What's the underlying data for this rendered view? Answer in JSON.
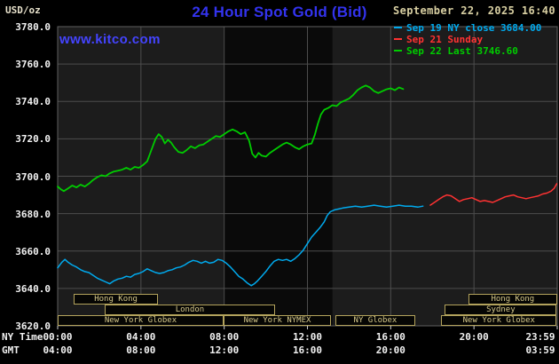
{
  "header": {
    "unit_label": "USD/oz",
    "title": "24 Hour Spot Gold (Bid)",
    "datetime": "September 22, 2025 16:40",
    "watermark": "www.kitco.com"
  },
  "colors": {
    "title_blue": "#3333ee",
    "watermark_blue": "#4444ff",
    "wheat": "#d8cfa2",
    "unit_text": "#e8e2cc",
    "axis_text": "#f2f2f2",
    "grid": "#4d4d4d",
    "frame": "#5f5f5f",
    "plot_bg": "#1c1c1c",
    "band": "#0a0a0a",
    "tick": "#cccccc",
    "session_border": "#b3a35c",
    "session_text": "#d6c98b"
  },
  "chart_data": {
    "type": "line",
    "title": "24 Hour Spot Gold (Bid)",
    "ylabel": "USD/oz",
    "timestamp": "September 22, 2025 16:40",
    "ylim": [
      3620,
      3780
    ],
    "x_hours": [
      0,
      24
    ],
    "grid": true,
    "legend_position": "top-right",
    "prev_ny_close": 3684.0,
    "last": 3746.6,
    "y_ticks": [
      {
        "value": 3780,
        "label": "3780.0"
      },
      {
        "value": 3760,
        "label": "3760.0"
      },
      {
        "value": 3740,
        "label": "3740.0"
      },
      {
        "value": 3720,
        "label": "3720.0"
      },
      {
        "value": 3700,
        "label": "3700.0"
      },
      {
        "value": 3680,
        "label": "3680.0"
      },
      {
        "value": 3660,
        "label": "3660.0"
      },
      {
        "value": 3640,
        "label": "3640.0"
      },
      {
        "value": 3620,
        "label": "3620.0"
      }
    ],
    "x_rows": [
      {
        "name": "NY Time",
        "ticks": [
          {
            "text": "00:00",
            "hour": 0
          },
          {
            "text": "04:00",
            "hour": 4
          },
          {
            "text": "08:00",
            "hour": 8
          },
          {
            "text": "12:00",
            "hour": 12
          },
          {
            "text": "16:00",
            "hour": 16
          },
          {
            "text": "20:00",
            "hour": 20
          },
          {
            "text": "23:59",
            "hour": 24
          }
        ]
      },
      {
        "name": "GMT",
        "ticks": [
          {
            "text": "04:00",
            "hour": 0
          },
          {
            "text": "08:00",
            "hour": 4
          },
          {
            "text": "12:00",
            "hour": 8
          },
          {
            "text": "16:00",
            "hour": 12
          },
          {
            "text": "20:00",
            "hour": 16
          },
          {
            "text": "03:59",
            "hour": 24
          }
        ]
      }
    ],
    "highlight_band_hours": [
      8,
      13.2
    ],
    "series": [
      {
        "id": "sep19",
        "name": "Sep 19 NY close 3684.00",
        "color": "#00aaee",
        "width": 1.5,
        "points": [
          [
            0,
            3651
          ],
          [
            0.2,
            3654
          ],
          [
            0.35,
            3655.5
          ],
          [
            0.5,
            3654
          ],
          [
            0.7,
            3652.5
          ],
          [
            0.9,
            3651.5
          ],
          [
            1.1,
            3650
          ],
          [
            1.3,
            3649
          ],
          [
            1.5,
            3648.5
          ],
          [
            1.7,
            3647
          ],
          [
            1.9,
            3645.5
          ],
          [
            2.1,
            3644.5
          ],
          [
            2.3,
            3643.5
          ],
          [
            2.5,
            3642.5
          ],
          [
            2.7,
            3644
          ],
          [
            2.9,
            3645
          ],
          [
            3.1,
            3645.5
          ],
          [
            3.3,
            3646.5
          ],
          [
            3.5,
            3646
          ],
          [
            3.7,
            3647.5
          ],
          [
            3.9,
            3648
          ],
          [
            4.1,
            3649
          ],
          [
            4.3,
            3650.5
          ],
          [
            4.5,
            3649.5
          ],
          [
            4.7,
            3648.5
          ],
          [
            4.9,
            3648
          ],
          [
            5.1,
            3648.5
          ],
          [
            5.3,
            3649.5
          ],
          [
            5.5,
            3650
          ],
          [
            5.7,
            3651
          ],
          [
            5.9,
            3651.5
          ],
          [
            6.1,
            3652.5
          ],
          [
            6.3,
            3654
          ],
          [
            6.5,
            3655
          ],
          [
            6.7,
            3654.5
          ],
          [
            6.9,
            3653.5
          ],
          [
            7.1,
            3654.5
          ],
          [
            7.3,
            3653.5
          ],
          [
            7.5,
            3654
          ],
          [
            7.7,
            3655.5
          ],
          [
            7.9,
            3655
          ],
          [
            8.1,
            3653.5
          ],
          [
            8.3,
            3651.5
          ],
          [
            8.5,
            3649
          ],
          [
            8.7,
            3646.5
          ],
          [
            8.9,
            3645
          ],
          [
            9.1,
            3643
          ],
          [
            9.3,
            3641.5
          ],
          [
            9.45,
            3642.5
          ],
          [
            9.6,
            3644
          ],
          [
            9.8,
            3646.5
          ],
          [
            10,
            3649
          ],
          [
            10.2,
            3652
          ],
          [
            10.4,
            3654.5
          ],
          [
            10.6,
            3655.5
          ],
          [
            10.8,
            3655
          ],
          [
            11,
            3655.5
          ],
          [
            11.2,
            3654.5
          ],
          [
            11.4,
            3656
          ],
          [
            11.6,
            3658
          ],
          [
            11.8,
            3660.5
          ],
          [
            12,
            3664
          ],
          [
            12.2,
            3667.5
          ],
          [
            12.4,
            3670
          ],
          [
            12.6,
            3672.5
          ],
          [
            12.8,
            3675.5
          ],
          [
            12.95,
            3679
          ],
          [
            13.1,
            3681
          ],
          [
            13.3,
            3682
          ],
          [
            13.5,
            3682.5
          ],
          [
            13.7,
            3683
          ],
          [
            14,
            3683.5
          ],
          [
            14.3,
            3684
          ],
          [
            14.6,
            3683.5
          ],
          [
            14.9,
            3684
          ],
          [
            15.2,
            3684.5
          ],
          [
            15.5,
            3684
          ],
          [
            15.8,
            3683.5
          ],
          [
            16.1,
            3684
          ],
          [
            16.4,
            3684.5
          ],
          [
            16.7,
            3684
          ],
          [
            17,
            3684
          ],
          [
            17.3,
            3683.5
          ],
          [
            17.55,
            3684
          ]
        ]
      },
      {
        "id": "sep21",
        "name": "Sep 21 Sunday",
        "color": "#ff3232",
        "width": 1.5,
        "points": [
          [
            17.9,
            3684.5
          ],
          [
            18.1,
            3686
          ],
          [
            18.3,
            3687.5
          ],
          [
            18.5,
            3689
          ],
          [
            18.7,
            3690
          ],
          [
            18.9,
            3689.5
          ],
          [
            19.1,
            3688
          ],
          [
            19.3,
            3686.5
          ],
          [
            19.5,
            3687.5
          ],
          [
            19.7,
            3688
          ],
          [
            19.9,
            3688.5
          ],
          [
            20.1,
            3687.5
          ],
          [
            20.3,
            3686.5
          ],
          [
            20.5,
            3687
          ],
          [
            20.7,
            3686.5
          ],
          [
            20.9,
            3686
          ],
          [
            21.1,
            3687
          ],
          [
            21.3,
            3688
          ],
          [
            21.5,
            3689
          ],
          [
            21.7,
            3689.5
          ],
          [
            21.9,
            3690
          ],
          [
            22.1,
            3689
          ],
          [
            22.3,
            3688.5
          ],
          [
            22.5,
            3688
          ],
          [
            22.7,
            3688.5
          ],
          [
            22.9,
            3689
          ],
          [
            23.1,
            3689.5
          ],
          [
            23.3,
            3690.5
          ],
          [
            23.5,
            3691
          ],
          [
            23.7,
            3692
          ],
          [
            23.85,
            3693.5
          ],
          [
            23.98,
            3696
          ]
        ]
      },
      {
        "id": "sep22",
        "name": "Sep 22 Last 3746.60",
        "color": "#00cc00",
        "width": 1.8,
        "points": [
          [
            0,
            3694.5
          ],
          [
            0.15,
            3693
          ],
          [
            0.3,
            3692
          ],
          [
            0.5,
            3693.5
          ],
          [
            0.7,
            3695
          ],
          [
            0.9,
            3694
          ],
          [
            1.1,
            3695.5
          ],
          [
            1.3,
            3694.5
          ],
          [
            1.5,
            3696
          ],
          [
            1.7,
            3698
          ],
          [
            1.9,
            3699.5
          ],
          [
            2.1,
            3700.5
          ],
          [
            2.3,
            3700
          ],
          [
            2.5,
            3701.5
          ],
          [
            2.7,
            3702.5
          ],
          [
            2.9,
            3703
          ],
          [
            3.1,
            3703.5
          ],
          [
            3.3,
            3704.5
          ],
          [
            3.5,
            3703.5
          ],
          [
            3.7,
            3705
          ],
          [
            3.9,
            3704.5
          ],
          [
            4.1,
            3706
          ],
          [
            4.3,
            3708
          ],
          [
            4.5,
            3714
          ],
          [
            4.7,
            3720
          ],
          [
            4.85,
            3722.5
          ],
          [
            5,
            3721
          ],
          [
            5.15,
            3717.5
          ],
          [
            5.3,
            3719.5
          ],
          [
            5.45,
            3718
          ],
          [
            5.6,
            3715.5
          ],
          [
            5.8,
            3713
          ],
          [
            6,
            3712.5
          ],
          [
            6.2,
            3714
          ],
          [
            6.4,
            3716
          ],
          [
            6.6,
            3715
          ],
          [
            6.8,
            3716.5
          ],
          [
            7,
            3717
          ],
          [
            7.2,
            3718.5
          ],
          [
            7.4,
            3720
          ],
          [
            7.6,
            3721.5
          ],
          [
            7.8,
            3721
          ],
          [
            8,
            3722.5
          ],
          [
            8.2,
            3724
          ],
          [
            8.4,
            3725
          ],
          [
            8.6,
            3724
          ],
          [
            8.8,
            3722.5
          ],
          [
            9,
            3723.5
          ],
          [
            9.2,
            3719
          ],
          [
            9.35,
            3712
          ],
          [
            9.5,
            3710
          ],
          [
            9.65,
            3712.5
          ],
          [
            9.8,
            3711
          ],
          [
            10,
            3710.5
          ],
          [
            10.2,
            3712.5
          ],
          [
            10.4,
            3714
          ],
          [
            10.6,
            3715.5
          ],
          [
            10.8,
            3717
          ],
          [
            11,
            3718
          ],
          [
            11.2,
            3717
          ],
          [
            11.4,
            3715.5
          ],
          [
            11.6,
            3714.5
          ],
          [
            11.8,
            3716
          ],
          [
            12,
            3717
          ],
          [
            12.2,
            3717.5
          ],
          [
            12.35,
            3722
          ],
          [
            12.5,
            3728
          ],
          [
            12.65,
            3733
          ],
          [
            12.8,
            3735.5
          ],
          [
            13,
            3736.5
          ],
          [
            13.2,
            3738
          ],
          [
            13.4,
            3737.5
          ],
          [
            13.6,
            3739.5
          ],
          [
            13.8,
            3740.5
          ],
          [
            14,
            3741.5
          ],
          [
            14.2,
            3743.5
          ],
          [
            14.4,
            3746
          ],
          [
            14.6,
            3747.5
          ],
          [
            14.8,
            3748.5
          ],
          [
            15,
            3747.5
          ],
          [
            15.2,
            3745.5
          ],
          [
            15.4,
            3744.5
          ],
          [
            15.6,
            3745.5
          ],
          [
            15.8,
            3746.5
          ],
          [
            16,
            3747
          ],
          [
            16.2,
            3746
          ],
          [
            16.4,
            3747.5
          ],
          [
            16.6,
            3746.6
          ]
        ]
      }
    ],
    "sessions": [
      {
        "row": 0,
        "label": "Hong Kong",
        "start": 0.77,
        "end": 4.82
      },
      {
        "row": 0,
        "label": "Hong Kong",
        "start": 19.74,
        "end": 23.98
      },
      {
        "row": 1,
        "label": "London",
        "start": 2.26,
        "end": 10.44
      },
      {
        "row": 1,
        "label": "Sydney",
        "start": 18.6,
        "end": 23.98
      },
      {
        "row": 2,
        "label": "New York Globex",
        "start": 0,
        "end": 7.97
      },
      {
        "row": 2,
        "label": "New York NYMEX",
        "start": 7.97,
        "end": 13.13
      },
      {
        "row": 2,
        "label": "NY Globex",
        "start": 13.34,
        "end": 17.18
      },
      {
        "row": 2,
        "label": "New York Globex",
        "start": 18.42,
        "end": 23.98
      }
    ]
  }
}
